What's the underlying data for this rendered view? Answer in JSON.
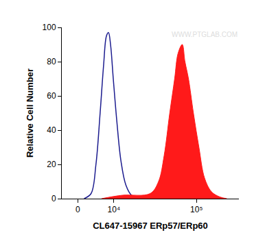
{
  "chart_data": {
    "type": "histogram_overlay",
    "xlabel": "CL647-15967 ERp57/ERp60",
    "ylabel": "Relative Cell Number",
    "annotations": [
      "WWW.PTGLAB.COM"
    ],
    "xlim": [
      -4000,
      300000
    ],
    "xticks": [
      {
        "value": 0,
        "label": "0"
      },
      {
        "value": 10000,
        "label": "10⁴"
      },
      {
        "value": 100000,
        "label": "10⁵"
      }
    ],
    "ylim": [
      0,
      100
    ],
    "yticks": [
      0,
      20,
      40,
      60,
      80,
      100
    ],
    "grid": false,
    "series": [
      {
        "type": "line",
        "color": "#1c1c8f",
        "x": [
          1520,
          3260,
          4530,
          5680,
          6690,
          7550,
          8200,
          8870,
          9800,
          11100,
          12700,
          14800,
          17500,
          22000
        ],
        "values": [
          0,
          3,
          20,
          50,
          78,
          95,
          97,
          90,
          70,
          45,
          22,
          8,
          2,
          0
        ]
      },
      {
        "type": "area",
        "color": "#ff1a1a",
        "x": [
          6080,
          13300,
          29600,
          37000,
          42900,
          49800,
          56600,
          62000,
          69100,
          74200,
          81300,
          92400,
          106600,
          123400,
          147700,
          183300,
          219700
        ],
        "values": [
          0,
          2,
          3,
          10,
          25,
          50,
          70,
          85,
          90,
          80,
          70,
          50,
          30,
          12,
          4,
          1,
          0
        ]
      }
    ]
  }
}
